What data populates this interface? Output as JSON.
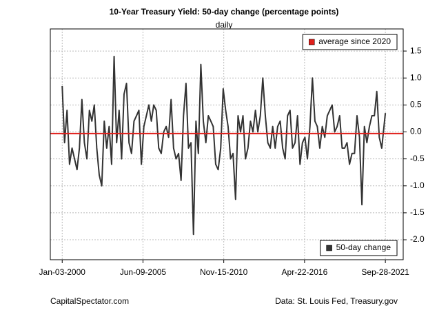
{
  "chart_data": {
    "type": "line",
    "title": "10-Year Treasury Yield: 50-day change (percentage points)",
    "subtitle": "daily",
    "x": [
      "2000-01-03",
      "2000-03-01",
      "2000-05-01",
      "2000-07-01",
      "2000-09-01",
      "2000-11-01",
      "2001-01-01",
      "2001-03-01",
      "2001-05-01",
      "2001-07-01",
      "2001-09-01",
      "2001-11-01",
      "2002-01-01",
      "2002-03-01",
      "2002-05-01",
      "2002-07-01",
      "2002-09-01",
      "2002-11-01",
      "2003-01-01",
      "2003-03-01",
      "2003-05-01",
      "2003-07-01",
      "2003-09-01",
      "2003-11-01",
      "2004-01-01",
      "2004-03-01",
      "2004-05-01",
      "2004-07-01",
      "2004-09-01",
      "2004-11-01",
      "2005-01-01",
      "2005-03-01",
      "2005-05-01",
      "2005-07-01",
      "2005-09-01",
      "2005-11-01",
      "2006-01-01",
      "2006-03-01",
      "2006-05-01",
      "2006-07-01",
      "2006-09-01",
      "2006-11-01",
      "2007-01-01",
      "2007-03-01",
      "2007-05-01",
      "2007-07-01",
      "2007-09-01",
      "2007-11-01",
      "2008-01-01",
      "2008-03-01",
      "2008-05-01",
      "2008-07-01",
      "2008-09-01",
      "2008-11-01",
      "2009-01-01",
      "2009-03-01",
      "2009-05-01",
      "2009-07-01",
      "2009-09-01",
      "2009-11-01",
      "2010-01-01",
      "2010-03-01",
      "2010-05-01",
      "2010-07-01",
      "2010-09-01",
      "2010-11-01",
      "2011-01-01",
      "2011-03-01",
      "2011-05-01",
      "2011-07-01",
      "2011-09-01",
      "2011-11-01",
      "2012-01-01",
      "2012-03-01",
      "2012-05-01",
      "2012-07-01",
      "2012-09-01",
      "2012-11-01",
      "2013-01-01",
      "2013-03-01",
      "2013-05-01",
      "2013-07-01",
      "2013-09-01",
      "2013-11-01",
      "2014-01-01",
      "2014-03-01",
      "2014-05-01",
      "2014-07-01",
      "2014-09-01",
      "2014-11-01",
      "2015-01-01",
      "2015-03-01",
      "2015-05-01",
      "2015-07-01",
      "2015-09-01",
      "2015-11-01",
      "2016-01-01",
      "2016-03-01",
      "2016-05-01",
      "2016-07-01",
      "2016-09-01",
      "2016-11-01",
      "2017-01-01",
      "2017-03-01",
      "2017-05-01",
      "2017-07-01",
      "2017-09-01",
      "2017-11-01",
      "2018-01-01",
      "2018-03-01",
      "2018-05-01",
      "2018-07-01",
      "2018-09-01",
      "2018-11-01",
      "2019-01-01",
      "2019-03-01",
      "2019-05-01",
      "2019-07-01",
      "2019-09-01",
      "2019-11-01",
      "2020-01-01",
      "2020-03-01",
      "2020-05-01",
      "2020-07-01",
      "2020-09-01",
      "2020-11-01",
      "2021-01-01",
      "2021-03-01",
      "2021-05-01",
      "2021-07-01",
      "2021-09-28"
    ],
    "series": [
      {
        "name": "50-day change",
        "color": "#333333",
        "values": [
          0.85,
          -0.2,
          0.4,
          -0.6,
          -0.3,
          -0.5,
          -0.7,
          -0.3,
          0.6,
          -0.2,
          -0.5,
          0.4,
          0.2,
          0.5,
          -0.3,
          -0.8,
          -1.0,
          0.2,
          -0.3,
          0.1,
          -0.6,
          1.4,
          -0.2,
          0.4,
          -0.5,
          0.7,
          0.9,
          -0.2,
          -0.4,
          0.2,
          0.3,
          0.4,
          -0.6,
          0.1,
          0.3,
          0.5,
          0.2,
          0.5,
          0.4,
          -0.3,
          -0.4,
          0.0,
          0.1,
          -0.1,
          0.6,
          -0.3,
          -0.5,
          -0.4,
          -0.9,
          0.3,
          0.9,
          -0.3,
          -0.2,
          -1.9,
          0.2,
          -0.4,
          1.25,
          0.2,
          -0.2,
          0.3,
          0.2,
          0.1,
          -0.6,
          -0.7,
          -0.3,
          0.8,
          0.4,
          0.1,
          -0.5,
          -0.4,
          -1.25,
          0.3,
          0.0,
          0.3,
          -0.5,
          -0.3,
          0.2,
          0.0,
          0.4,
          0.0,
          0.3,
          1.0,
          0.3,
          -0.2,
          -0.3,
          0.1,
          -0.3,
          0.1,
          0.2,
          -0.3,
          -0.5,
          0.3,
          0.4,
          -0.3,
          -0.2,
          0.3,
          -0.6,
          -0.2,
          -0.1,
          -0.5,
          0.1,
          1.0,
          0.2,
          0.1,
          -0.3,
          0.1,
          -0.1,
          0.3,
          0.4,
          0.5,
          0.0,
          0.1,
          0.3,
          -0.3,
          -0.3,
          -0.2,
          -0.6,
          -0.4,
          -0.4,
          0.3,
          -0.1,
          -1.35,
          0.1,
          -0.2,
          0.1,
          0.3,
          0.3,
          0.75,
          -0.1,
          -0.3,
          0.35
        ]
      }
    ],
    "series_legend": "bottom-right",
    "hlines": [
      {
        "name": "average since 2020",
        "color": "#e0201c",
        "value": -0.03
      }
    ],
    "hline_legend": "top-right",
    "xlim": [
      "1999-03-17",
      "2022-12-10"
    ],
    "xticks": [
      {
        "value": "2000-01-03",
        "label": "Jan-03-2000"
      },
      {
        "value": "2005-06-09",
        "label": "Jun-09-2005"
      },
      {
        "value": "2010-11-15",
        "label": "Nov-15-2010"
      },
      {
        "value": "2016-04-22",
        "label": "Apr-22-2016"
      },
      {
        "value": "2021-09-28",
        "label": "Sep-28-2021"
      }
    ],
    "ylim": [
      -2.37,
      1.91
    ],
    "yticks": [
      {
        "value": -2,
        "label": "-2.0"
      },
      -1.5,
      {
        "value": -1,
        "label": "-1.0"
      },
      -0.5,
      {
        "value": 0,
        "label": "0.0"
      },
      0.5,
      {
        "value": 1,
        "label": "1.0"
      },
      1.5
    ],
    "grid": true,
    "footer_left": "CapitalSpectator.com",
    "footer_right": "Data: St. Louis Fed, Treasury.gov"
  }
}
